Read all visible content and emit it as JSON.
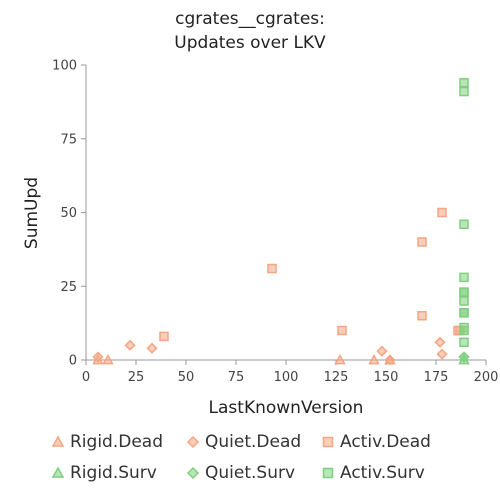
{
  "chart_data": {
    "type": "scatter",
    "title": [
      "cgrates__cgrates:",
      "Updates over LKV"
    ],
    "xlabel": "LastKnownVersion",
    "ylabel": "SumUpd",
    "xlim": [
      0,
      200
    ],
    "ylim": [
      0,
      100
    ],
    "xticks": [
      "0",
      "25",
      "50",
      "75",
      "100",
      "125",
      "150",
      "175",
      "200"
    ],
    "yticks": [
      "0",
      "25",
      "50",
      "75",
      "100"
    ],
    "grid": false,
    "legend_position": "bottom",
    "series": [
      {
        "name": "Rigid.Dead",
        "marker": "triangle",
        "color": "#f4a582",
        "points": [
          [
            6,
            0
          ],
          [
            11,
            0
          ],
          [
            127,
            0
          ],
          [
            144,
            0
          ],
          [
            152,
            0
          ]
        ]
      },
      {
        "name": "Quiet.Dead",
        "marker": "diamond",
        "color": "#f4a582",
        "points": [
          [
            6,
            1
          ],
          [
            22,
            5
          ],
          [
            33,
            4
          ],
          [
            148,
            3
          ],
          [
            152,
            0
          ],
          [
            177,
            6
          ],
          [
            178,
            2
          ]
        ]
      },
      {
        "name": "Activ.Dead",
        "marker": "square",
        "color": "#f4a582",
        "points": [
          [
            39,
            8
          ],
          [
            93,
            31
          ],
          [
            128,
            10
          ],
          [
            168,
            15
          ],
          [
            168,
            40
          ],
          [
            178,
            50
          ],
          [
            186,
            10
          ],
          [
            187,
            10
          ]
        ]
      },
      {
        "name": "Rigid.Surv",
        "marker": "triangle",
        "color": "#7fcf7f",
        "points": [
          [
            189,
            0
          ]
        ]
      },
      {
        "name": "Quiet.Surv",
        "marker": "diamond",
        "color": "#7fcf7f",
        "points": [
          [
            189,
            1
          ],
          [
            189,
            1
          ]
        ]
      },
      {
        "name": "Activ.Surv",
        "marker": "square",
        "color": "#7fcf7f",
        "points": [
          [
            189,
            94
          ],
          [
            189,
            91
          ],
          [
            189,
            46
          ],
          [
            189,
            28
          ],
          [
            189,
            23
          ],
          [
            189,
            23
          ],
          [
            189,
            20
          ],
          [
            189,
            16
          ],
          [
            189,
            16
          ],
          [
            189,
            11
          ],
          [
            189,
            10
          ],
          [
            189,
            6
          ]
        ]
      }
    ]
  }
}
